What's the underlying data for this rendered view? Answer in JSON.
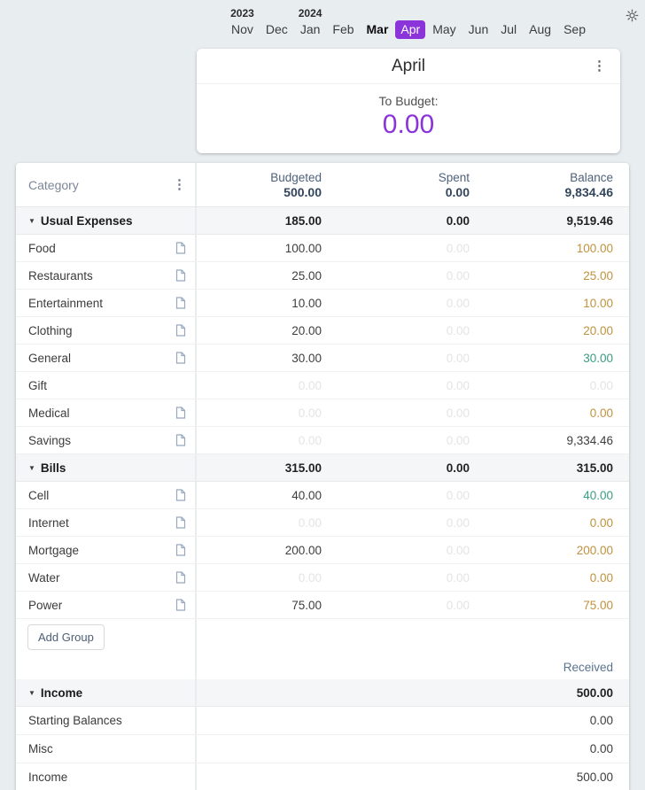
{
  "colors": {
    "accent_purple": "#8a34d9",
    "warning_amber": "#c1923d",
    "positive_green": "#399d82",
    "muted_value": "#e4e4e4",
    "header_slate": "#33455c",
    "page_background": "#e8edf0"
  },
  "month_picker": {
    "months": [
      {
        "label": "Nov",
        "year": "2023"
      },
      {
        "label": "Dec"
      },
      {
        "label": "Jan",
        "year": "2024"
      },
      {
        "label": "Feb"
      },
      {
        "label": "Mar",
        "emphasis": true
      },
      {
        "label": "Apr",
        "selected": true
      },
      {
        "label": "May"
      },
      {
        "label": "Jun"
      },
      {
        "label": "Jul"
      },
      {
        "label": "Aug"
      },
      {
        "label": "Sep"
      }
    ]
  },
  "month_card": {
    "title": "April",
    "to_budget_label": "To Budget:",
    "to_budget_value": "0.00"
  },
  "table": {
    "header": {
      "category_label": "Category",
      "columns": [
        {
          "label": "Budgeted",
          "total": "500.00"
        },
        {
          "label": "Spent",
          "total": "0.00"
        },
        {
          "label": "Balance",
          "total": "9,834.46"
        }
      ]
    },
    "groups": [
      {
        "name": "Usual Expenses",
        "budgeted": "185.00",
        "spent": "0.00",
        "balance": "9,519.46",
        "rows": [
          {
            "name": "Food",
            "has_note": true,
            "budgeted": "100.00",
            "budgeted_muted": false,
            "spent": "0.00",
            "spent_muted": true,
            "balance": "100.00",
            "balance_style": "warning"
          },
          {
            "name": "Restaurants",
            "has_note": true,
            "budgeted": "25.00",
            "budgeted_muted": false,
            "spent": "0.00",
            "spent_muted": true,
            "balance": "25.00",
            "balance_style": "warning"
          },
          {
            "name": "Entertainment",
            "has_note": true,
            "budgeted": "10.00",
            "budgeted_muted": false,
            "spent": "0.00",
            "spent_muted": true,
            "balance": "10.00",
            "balance_style": "warning"
          },
          {
            "name": "Clothing",
            "has_note": true,
            "budgeted": "20.00",
            "budgeted_muted": false,
            "spent": "0.00",
            "spent_muted": true,
            "balance": "20.00",
            "balance_style": "warning"
          },
          {
            "name": "General",
            "has_note": true,
            "budgeted": "30.00",
            "budgeted_muted": false,
            "spent": "0.00",
            "spent_muted": true,
            "balance": "30.00",
            "balance_style": "positive"
          },
          {
            "name": "Gift",
            "has_note": false,
            "budgeted": "0.00",
            "budgeted_muted": true,
            "spent": "0.00",
            "spent_muted": true,
            "balance": "0.00",
            "balance_style": "muted"
          },
          {
            "name": "Medical",
            "has_note": true,
            "budgeted": "0.00",
            "budgeted_muted": true,
            "spent": "0.00",
            "spent_muted": true,
            "balance": "0.00",
            "balance_style": "warning"
          },
          {
            "name": "Savings",
            "has_note": true,
            "budgeted": "0.00",
            "budgeted_muted": true,
            "spent": "0.00",
            "spent_muted": true,
            "balance": "9,334.46",
            "balance_style": "default"
          }
        ]
      },
      {
        "name": "Bills",
        "budgeted": "315.00",
        "spent": "0.00",
        "balance": "315.00",
        "rows": [
          {
            "name": "Cell",
            "has_note": true,
            "budgeted": "40.00",
            "budgeted_muted": false,
            "spent": "0.00",
            "spent_muted": true,
            "balance": "40.00",
            "balance_style": "positive"
          },
          {
            "name": "Internet",
            "has_note": true,
            "budgeted": "0.00",
            "budgeted_muted": true,
            "spent": "0.00",
            "spent_muted": true,
            "balance": "0.00",
            "balance_style": "warning"
          },
          {
            "name": "Mortgage",
            "has_note": true,
            "budgeted": "200.00",
            "budgeted_muted": false,
            "spent": "0.00",
            "spent_muted": true,
            "balance": "200.00",
            "balance_style": "warning"
          },
          {
            "name": "Water",
            "has_note": true,
            "budgeted": "0.00",
            "budgeted_muted": true,
            "spent": "0.00",
            "spent_muted": true,
            "balance": "0.00",
            "balance_style": "warning"
          },
          {
            "name": "Power",
            "has_note": true,
            "budgeted": "75.00",
            "budgeted_muted": false,
            "spent": "0.00",
            "spent_muted": true,
            "balance": "75.00",
            "balance_style": "warning"
          }
        ]
      }
    ],
    "add_group_label": "Add Group",
    "received_label": "Received",
    "income": {
      "name": "Income",
      "total": "500.00",
      "rows": [
        {
          "name": "Starting Balances",
          "value": "0.00"
        },
        {
          "name": "Misc",
          "value": "0.00"
        },
        {
          "name": "Income",
          "value": "500.00"
        }
      ]
    }
  }
}
